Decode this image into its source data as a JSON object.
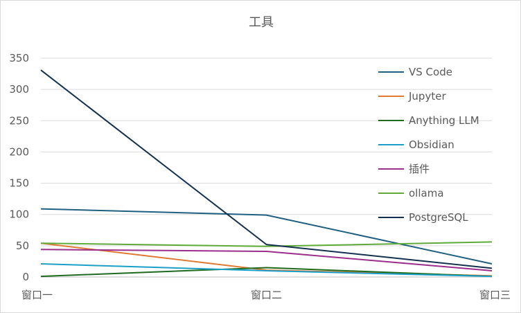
{
  "chart_data": {
    "type": "line",
    "title": "工具",
    "categories": [
      "窗口一",
      "窗口二",
      "窗口三"
    ],
    "ylim": [
      0,
      350
    ],
    "yticks": [
      0,
      50,
      100,
      150,
      200,
      250,
      300,
      350
    ],
    "grid": true,
    "legend_position": "right",
    "series": [
      {
        "name": "VS Code",
        "color": "#1f5f7f",
        "values": [
          109,
          99,
          21
        ]
      },
      {
        "name": "Jupyter",
        "color": "#e07a32",
        "values": [
          54,
          11,
          2
        ]
      },
      {
        "name": "Anything LLM",
        "color": "#1e6b1e",
        "values": [
          1,
          15,
          1
        ]
      },
      {
        "name": "Obsidian",
        "color": "#1aa0c8",
        "values": [
          21,
          10,
          1
        ]
      },
      {
        "name": "插件",
        "color": "#9b2d8b",
        "values": [
          44,
          41,
          10
        ]
      },
      {
        "name": "ollama",
        "color": "#5fab3a",
        "values": [
          54,
          49,
          56
        ]
      },
      {
        "name": "PostgreSQL",
        "color": "#13314f",
        "values": [
          331,
          52,
          14
        ]
      }
    ]
  }
}
